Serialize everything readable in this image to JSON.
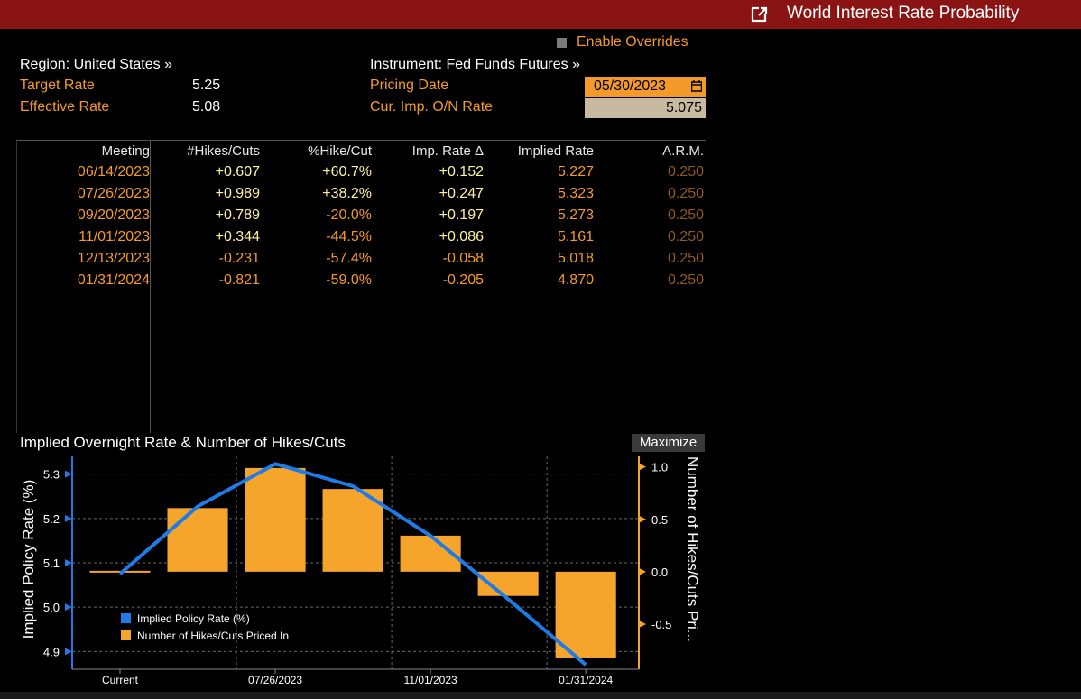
{
  "window": {
    "title": "World Interest Rate Probability"
  },
  "overrides": {
    "label": "Enable Overrides",
    "checked": false
  },
  "left_info": {
    "region": "Region: United States »",
    "target_rate_label": "Target Rate",
    "target_rate_value": "5.25",
    "effective_rate_label": "Effective Rate",
    "effective_rate_value": "5.08"
  },
  "right_info": {
    "instrument": "Instrument: Fed Funds Futures »",
    "pricing_date_label": "Pricing Date",
    "pricing_date_value": "05/30/2023",
    "on_rate_label": "Cur. Imp. O/N Rate",
    "on_rate_value": "5.075"
  },
  "table": {
    "headers": [
      "Meeting",
      "#Hikes/Cuts",
      "%Hike/Cut",
      "Imp. Rate Δ",
      "Implied Rate",
      "A.R.M."
    ],
    "rows": [
      [
        "06/14/2023",
        "+0.607",
        "+60.7%",
        "+0.152",
        "5.227",
        "0.250"
      ],
      [
        "07/26/2023",
        "+0.989",
        "+38.2%",
        "+0.247",
        "5.323",
        "0.250"
      ],
      [
        "09/20/2023",
        "+0.789",
        "-20.0%",
        "+0.197",
        "5.273",
        "0.250"
      ],
      [
        "11/01/2023",
        "+0.344",
        "-44.5%",
        "+0.086",
        "5.161",
        "0.250"
      ],
      [
        "12/13/2023",
        "-0.231",
        "-57.4%",
        "-0.058",
        "5.018",
        "0.250"
      ],
      [
        "01/31/2024",
        "-0.821",
        "-59.0%",
        "-0.205",
        "4.870",
        "0.250"
      ]
    ]
  },
  "chart_panel": {
    "title": "Implied Overnight Rate & Number of Hikes/Cuts",
    "maximize_label": "Maximize"
  },
  "chart_data": {
    "type": "bar",
    "title": "Implied Overnight Rate & Number of Hikes/Cuts",
    "categories": [
      "Current",
      "06/14/2023",
      "07/26/2023",
      "09/20/2023",
      "11/01/2023",
      "12/13/2023",
      "01/31/2024"
    ],
    "x_tick_labels": [
      "Current",
      "07/26/2023",
      "11/01/2023",
      "01/31/2024"
    ],
    "ylabel": "Implied Policy Rate (%)",
    "y2label": "Number of Hikes/Cuts Pri...",
    "ylim": [
      4.86,
      5.34
    ],
    "y2lim": [
      -0.93,
      1.1
    ],
    "yticks": [
      4.9,
      5.0,
      5.1,
      5.2,
      5.3
    ],
    "y2ticks": [
      -0.5,
      0.0,
      0.5,
      1.0
    ],
    "ytick_labels": [
      "4.9",
      "5.0",
      "5.1",
      "5.2",
      "5.3"
    ],
    "y2tick_labels": [
      "-0.5",
      "0.0",
      "0.5",
      "1.0"
    ],
    "series": [
      {
        "name": "Implied Policy Rate (%)",
        "type": "line",
        "axis": "left",
        "color": "#1f7be8",
        "values": [
          5.075,
          5.227,
          5.323,
          5.273,
          5.161,
          5.018,
          4.87
        ]
      },
      {
        "name": "Number of Hikes/Cuts Priced In",
        "type": "bar",
        "axis": "right",
        "color": "#f5a42c",
        "values": [
          0.0,
          0.607,
          0.989,
          0.789,
          0.344,
          -0.231,
          -0.821
        ]
      }
    ],
    "legend": "bottom-left",
    "grid": true
  }
}
